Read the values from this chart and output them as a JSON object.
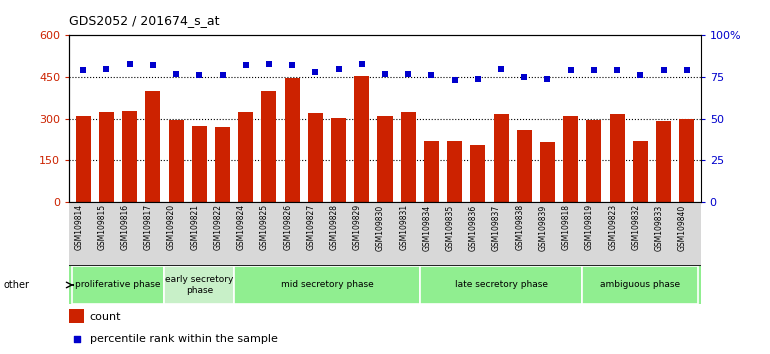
{
  "title": "GDS2052 / 201674_s_at",
  "samples": [
    "GSM109814",
    "GSM109815",
    "GSM109816",
    "GSM109817",
    "GSM109820",
    "GSM109821",
    "GSM109822",
    "GSM109824",
    "GSM109825",
    "GSM109826",
    "GSM109827",
    "GSM109828",
    "GSM109829",
    "GSM109830",
    "GSM109831",
    "GSM109834",
    "GSM109835",
    "GSM109836",
    "GSM109837",
    "GSM109838",
    "GSM109839",
    "GSM109818",
    "GSM109819",
    "GSM109823",
    "GSM109832",
    "GSM109833",
    "GSM109840"
  ],
  "counts": [
    308,
    322,
    328,
    400,
    295,
    272,
    270,
    325,
    400,
    447,
    320,
    302,
    455,
    308,
    322,
    218,
    218,
    205,
    315,
    260,
    215,
    310,
    295,
    315,
    218,
    290,
    300
  ],
  "percentile_ranks": [
    79,
    80,
    83,
    82,
    77,
    76,
    76,
    82,
    83,
    82,
    78,
    80,
    83,
    77,
    77,
    76,
    73,
    74,
    80,
    75,
    74,
    79,
    79,
    79,
    76,
    79,
    79
  ],
  "bar_color": "#cc2200",
  "dot_color": "#0000cc",
  "ylim_left": [
    0,
    600
  ],
  "ylim_right": [
    0,
    100
  ],
  "yticks_left": [
    0,
    150,
    300,
    450,
    600
  ],
  "yticks_right": [
    0,
    25,
    50,
    75,
    100
  ],
  "ytick_labels_right": [
    "0",
    "25",
    "50",
    "75",
    "100%"
  ],
  "grid_values": [
    150,
    300,
    450
  ],
  "phases": [
    {
      "label": "proliferative phase",
      "start": 0,
      "end": 3,
      "color": "#90ee90"
    },
    {
      "label": "early secretory\nphase",
      "start": 4,
      "end": 6,
      "color": "#c8f0c8"
    },
    {
      "label": "mid secretory phase",
      "start": 7,
      "end": 14,
      "color": "#90ee90"
    },
    {
      "label": "late secretory phase",
      "start": 15,
      "end": 21,
      "color": "#90ee90"
    },
    {
      "label": "ambiguous phase",
      "start": 22,
      "end": 26,
      "color": "#90ee90"
    }
  ],
  "other_label": "other",
  "legend_count_label": "count",
  "legend_pct_label": "percentile rank within the sample",
  "plot_bg": "#ffffff",
  "xtick_bg": "#d8d8d8",
  "fig_bg": "#ffffff"
}
